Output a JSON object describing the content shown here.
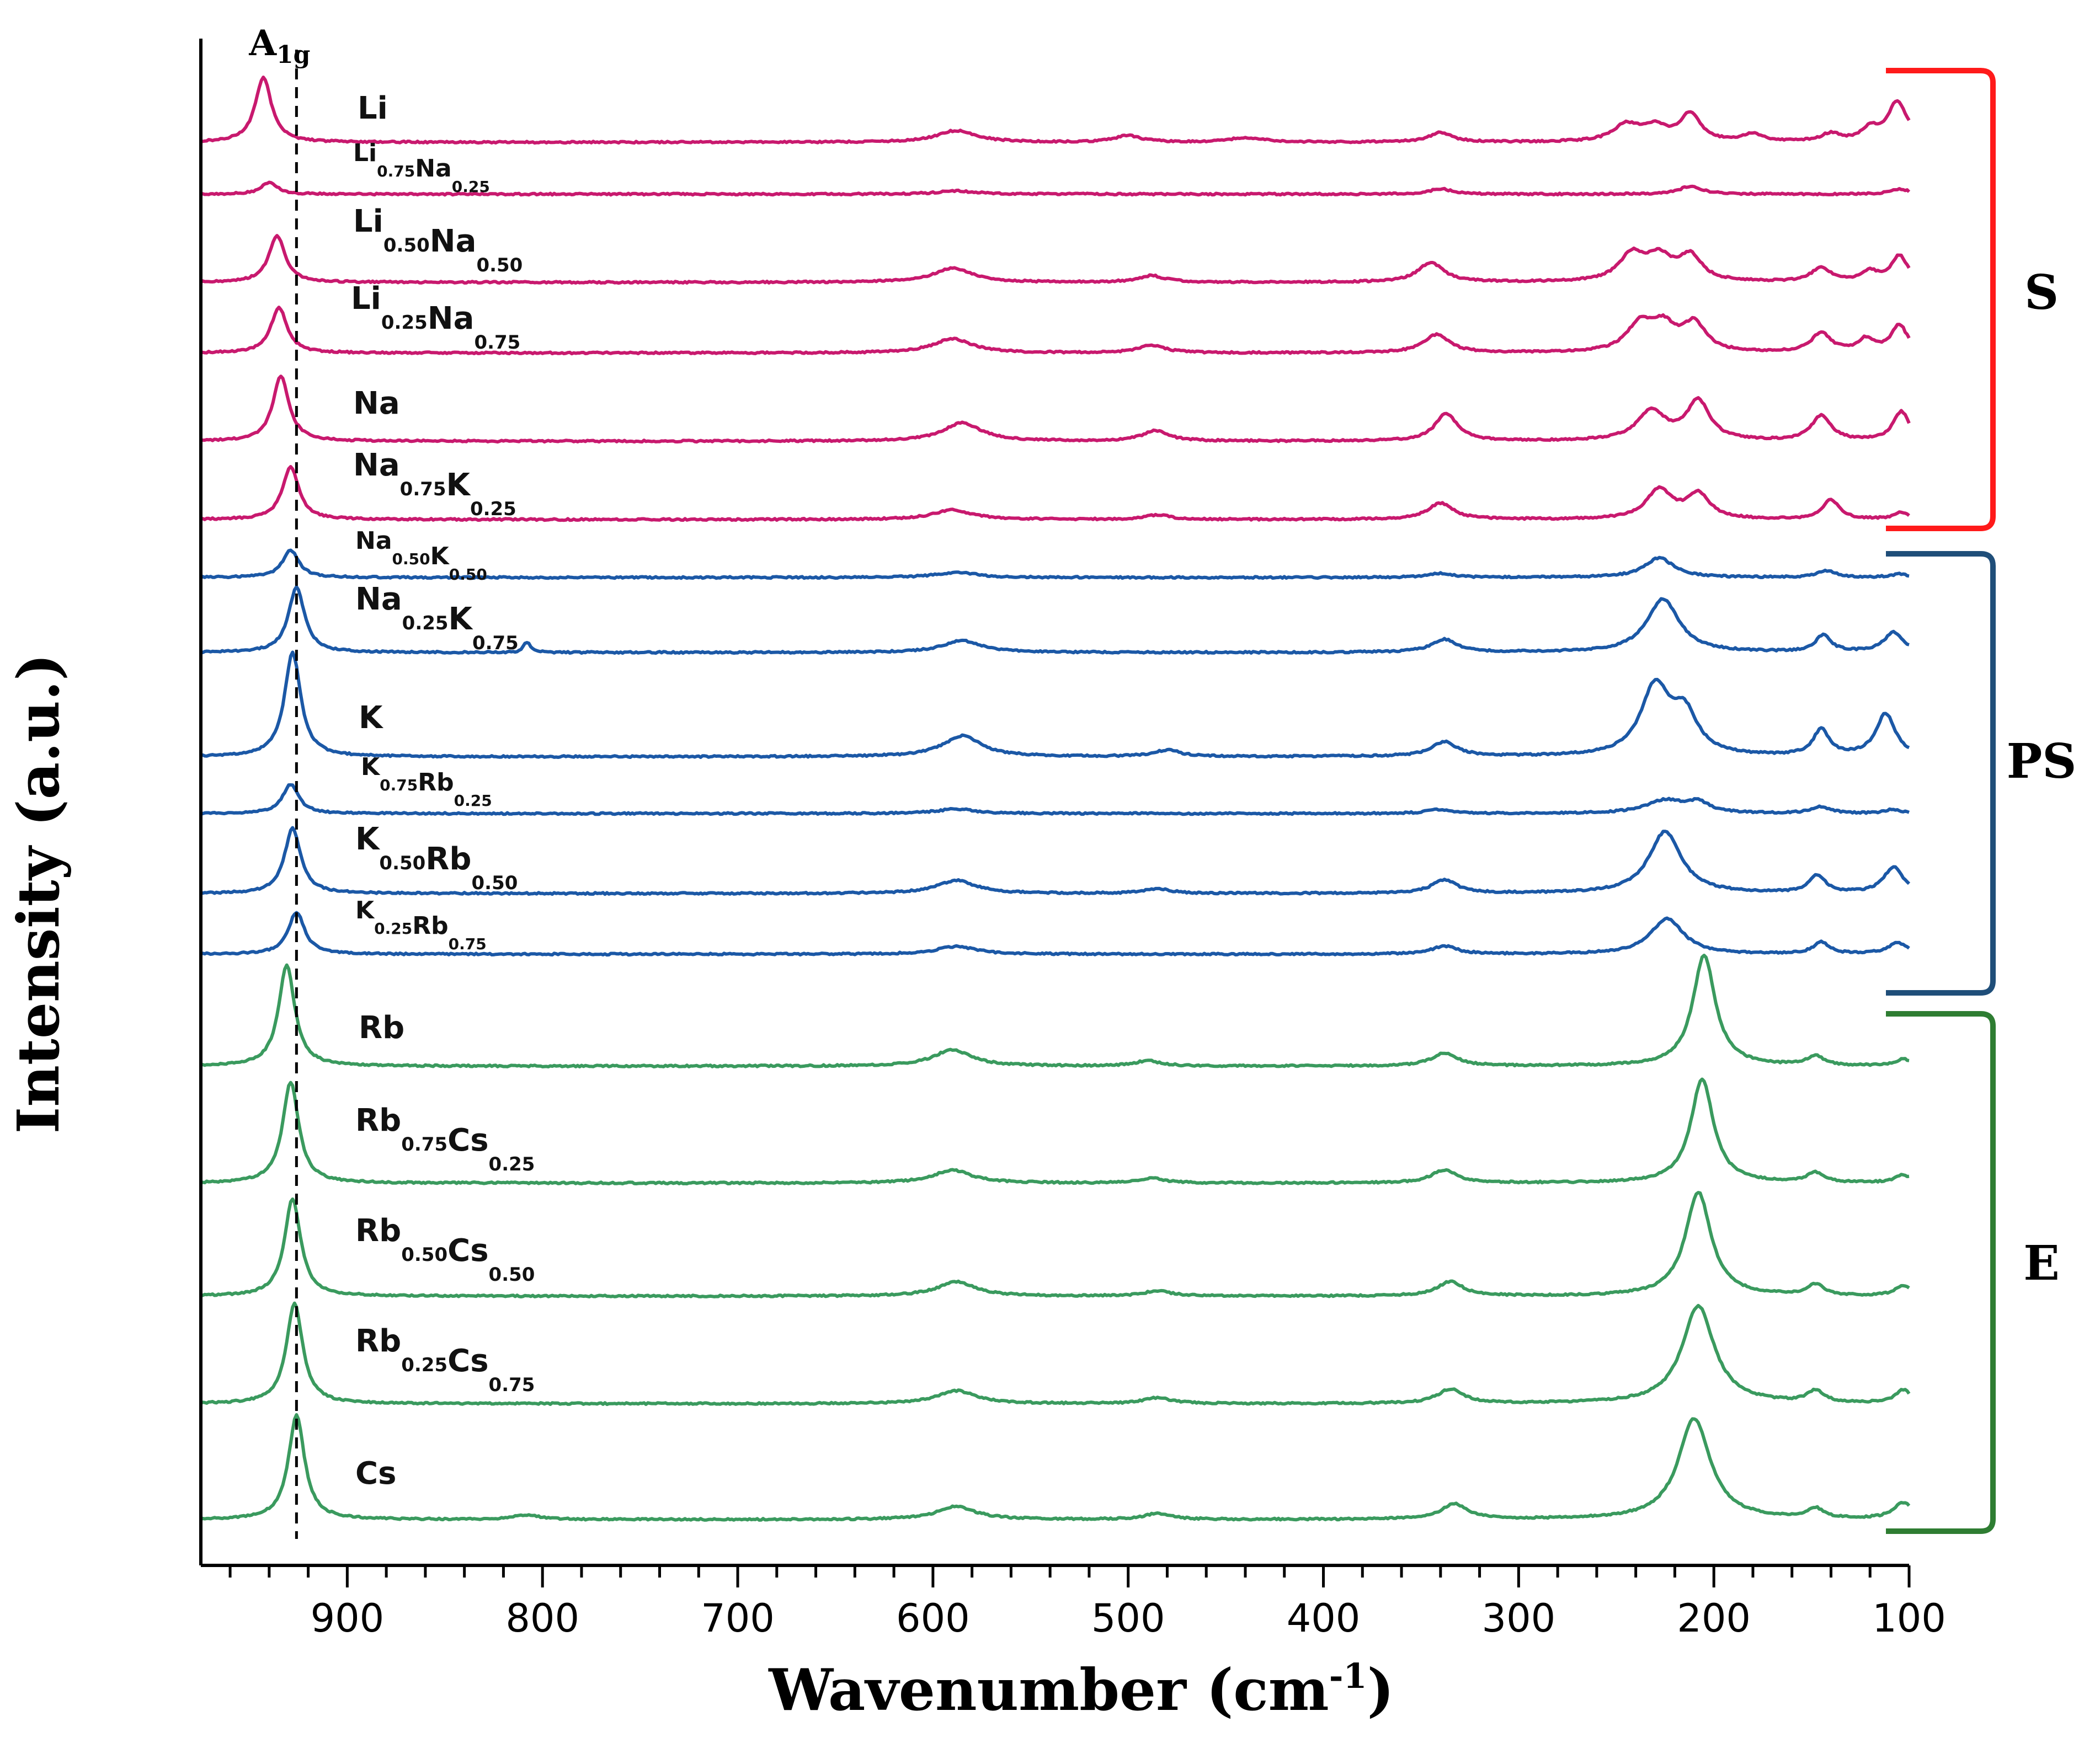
{
  "chart_data": {
    "type": "line",
    "title": "",
    "xlabel": "Wavenumber (cm",
    "xlabel_sup": "-1",
    "xlabel_end": ")",
    "ylabel": "Intensity (a.u.)",
    "xlim": [
      975,
      100
    ],
    "xticks": [
      900,
      800,
      700,
      600,
      500,
      400,
      300,
      200,
      100
    ],
    "grid": false,
    "reference_line": {
      "x": 926,
      "label": "A",
      "label_sub": "1g"
    },
    "groups": [
      {
        "name": "S",
        "color": "#ff1a1a"
      },
      {
        "name": "PS",
        "color": "#1f4e79"
      },
      {
        "name": "E",
        "color": "#2e7d32"
      }
    ],
    "series": [
      {
        "name": "Li",
        "label": [
          [
            "Li",
            ""
          ]
        ],
        "group": "S",
        "color": "#c8196e",
        "peaks": [
          [
            943,
            1.0,
            5
          ],
          [
            588,
            0.18,
            12
          ],
          [
            500,
            0.1,
            8
          ],
          [
            440,
            0.07,
            10
          ],
          [
            340,
            0.15,
            7
          ],
          [
            245,
            0.25,
            8
          ],
          [
            230,
            0.22,
            8
          ],
          [
            212,
            0.42,
            6
          ],
          [
            180,
            0.12,
            6
          ],
          [
            140,
            0.12,
            6
          ],
          [
            120,
            0.18,
            5
          ],
          [
            106,
            0.62,
            6
          ]
        ]
      },
      {
        "name": "Li0.75Na0.25",
        "label": [
          [
            "Li",
            "0.75"
          ],
          [
            "Na",
            "0.25"
          ]
        ],
        "group": "S",
        "color": "#c8196e",
        "peaks": [
          [
            940,
            0.18,
            5
          ],
          [
            588,
            0.05,
            12
          ],
          [
            340,
            0.08,
            7
          ],
          [
            212,
            0.12,
            7
          ],
          [
            105,
            0.08,
            6
          ]
        ]
      },
      {
        "name": "Li0.50Na0.50",
        "label": [
          [
            "Li",
            "0.50"
          ],
          [
            "Na",
            "0.50"
          ]
        ],
        "group": "S",
        "color": "#c8196e",
        "peaks": [
          [
            936,
            0.72,
            5
          ],
          [
            590,
            0.22,
            12
          ],
          [
            488,
            0.1,
            8
          ],
          [
            345,
            0.3,
            8
          ],
          [
            242,
            0.4,
            8
          ],
          [
            228,
            0.35,
            8
          ],
          [
            212,
            0.38,
            7
          ],
          [
            145,
            0.22,
            6
          ],
          [
            120,
            0.15,
            5
          ],
          [
            105,
            0.4,
            5
          ]
        ]
      },
      {
        "name": "Li0.25Na0.75",
        "label": [
          [
            "Li",
            "0.25"
          ],
          [
            "Na",
            "0.75"
          ]
        ],
        "group": "S",
        "color": "#c8196e",
        "peaks": [
          [
            935,
            0.7,
            5
          ],
          [
            590,
            0.22,
            12
          ],
          [
            488,
            0.12,
            8
          ],
          [
            342,
            0.28,
            8
          ],
          [
            238,
            0.4,
            8
          ],
          [
            226,
            0.38,
            8
          ],
          [
            210,
            0.42,
            7
          ],
          [
            145,
            0.3,
            6
          ],
          [
            122,
            0.2,
            5
          ],
          [
            105,
            0.42,
            5
          ]
        ]
      },
      {
        "name": "Na",
        "label": [
          [
            "Na",
            ""
          ]
        ],
        "group": "S",
        "color": "#c8196e",
        "peaks": [
          [
            934,
            1.0,
            5
          ],
          [
            585,
            0.28,
            12
          ],
          [
            486,
            0.16,
            8
          ],
          [
            337,
            0.42,
            7
          ],
          [
            232,
            0.45,
            9
          ],
          [
            208,
            0.6,
            7
          ],
          [
            145,
            0.38,
            6
          ],
          [
            104,
            0.45,
            5
          ]
        ]
      },
      {
        "name": "Na0.75K0.25",
        "label": [
          [
            "Na",
            "0.75"
          ],
          [
            "K",
            "0.25"
          ]
        ],
        "group": "S",
        "color": "#c8196e",
        "peaks": [
          [
            929,
            0.82,
            5
          ],
          [
            590,
            0.15,
            12
          ],
          [
            485,
            0.07,
            8
          ],
          [
            340,
            0.25,
            8
          ],
          [
            228,
            0.45,
            8
          ],
          [
            208,
            0.38,
            7
          ],
          [
            140,
            0.3,
            5
          ],
          [
            104,
            0.1,
            5
          ]
        ]
      },
      {
        "name": "Na0.50K0.50",
        "label": [
          [
            "Na",
            "0.50"
          ],
          [
            "K",
            "0.50"
          ]
        ],
        "group": "PS",
        "color": "#1b58a6",
        "peaks": [
          [
            929,
            0.42,
            5
          ],
          [
            588,
            0.08,
            12
          ],
          [
            340,
            0.06,
            8
          ],
          [
            228,
            0.3,
            9
          ],
          [
            142,
            0.1,
            6
          ],
          [
            105,
            0.05,
            5
          ]
        ]
      },
      {
        "name": "Na0.25K0.75",
        "label": [
          [
            "Na",
            "0.25"
          ],
          [
            "K",
            "0.75"
          ]
        ],
        "group": "PS",
        "color": "#1b58a6",
        "peaks": [
          [
            926,
            1.0,
            5
          ],
          [
            808,
            0.16,
            2
          ],
          [
            585,
            0.18,
            12
          ],
          [
            338,
            0.2,
            8
          ],
          [
            226,
            0.82,
            10
          ],
          [
            144,
            0.25,
            5
          ],
          [
            108,
            0.3,
            6
          ]
        ]
      },
      {
        "name": "K",
        "label": [
          [
            "K",
            ""
          ]
        ],
        "group": "PS",
        "color": "#1b58a6",
        "peaks": [
          [
            928,
            1.6,
            5
          ],
          [
            585,
            0.32,
            12
          ],
          [
            480,
            0.1,
            8
          ],
          [
            338,
            0.22,
            8
          ],
          [
            230,
            1.05,
            9
          ],
          [
            215,
            0.6,
            8
          ],
          [
            145,
            0.4,
            5
          ],
          [
            112,
            0.65,
            6
          ]
        ]
      },
      {
        "name": "K0.75Rb0.25",
        "label": [
          [
            "K",
            "0.75"
          ],
          [
            "Rb",
            "0.25"
          ]
        ],
        "group": "PS",
        "color": "#1b58a6",
        "peaks": [
          [
            929,
            0.45,
            5
          ],
          [
            588,
            0.07,
            12
          ],
          [
            340,
            0.06,
            8
          ],
          [
            225,
            0.2,
            12
          ],
          [
            208,
            0.15,
            7
          ],
          [
            145,
            0.1,
            6
          ],
          [
            108,
            0.06,
            5
          ]
        ]
      },
      {
        "name": "K0.50Rb0.50",
        "label": [
          [
            "K",
            "0.50"
          ],
          [
            "Rb",
            "0.50"
          ]
        ],
        "group": "PS",
        "color": "#1b58a6",
        "peaks": [
          [
            928,
            1.0,
            5
          ],
          [
            588,
            0.2,
            12
          ],
          [
            485,
            0.07,
            8
          ],
          [
            338,
            0.2,
            8
          ],
          [
            225,
            0.95,
            10
          ],
          [
            147,
            0.27,
            5
          ],
          [
            108,
            0.4,
            6
          ]
        ]
      },
      {
        "name": "K0.25Rb0.75",
        "label": [
          [
            "K",
            "0.25"
          ],
          [
            "Rb",
            "0.75"
          ]
        ],
        "group": "PS",
        "color": "#1b58a6",
        "peaks": [
          [
            926,
            0.65,
            5
          ],
          [
            588,
            0.12,
            12
          ],
          [
            338,
            0.12,
            8
          ],
          [
            224,
            0.55,
            10
          ],
          [
            145,
            0.18,
            5
          ],
          [
            106,
            0.17,
            6
          ]
        ]
      },
      {
        "name": "Rb",
        "label": [
          [
            "Rb",
            ""
          ]
        ],
        "group": "E",
        "color": "#3a9a5e",
        "peaks": [
          [
            931,
            1.55,
            5
          ],
          [
            590,
            0.25,
            12
          ],
          [
            490,
            0.08,
            8
          ],
          [
            338,
            0.2,
            8
          ],
          [
            205,
            1.7,
            7
          ],
          [
            148,
            0.15,
            5
          ],
          [
            103,
            0.1,
            5
          ]
        ]
      },
      {
        "name": "Rb0.75Cs0.25",
        "label": [
          [
            "Rb",
            "0.75"
          ],
          [
            "Cs",
            "0.25"
          ]
        ],
        "group": "E",
        "color": "#3a9a5e",
        "peaks": [
          [
            929,
            1.55,
            5
          ],
          [
            590,
            0.2,
            12
          ],
          [
            488,
            0.07,
            8
          ],
          [
            338,
            0.2,
            8
          ],
          [
            206,
            1.6,
            7
          ],
          [
            148,
            0.15,
            5
          ],
          [
            103,
            0.12,
            5
          ]
        ]
      },
      {
        "name": "Rb0.50Cs0.50",
        "label": [
          [
            "Rb",
            "0.50"
          ],
          [
            "Cs",
            "0.50"
          ]
        ],
        "group": "E",
        "color": "#3a9a5e",
        "peaks": [
          [
            928,
            1.5,
            5
          ],
          [
            588,
            0.22,
            12
          ],
          [
            485,
            0.08,
            8
          ],
          [
            335,
            0.22,
            8
          ],
          [
            208,
            1.6,
            8
          ],
          [
            148,
            0.17,
            5
          ],
          [
            103,
            0.15,
            5
          ]
        ]
      },
      {
        "name": "Rb0.25Cs0.75",
        "label": [
          [
            "Rb",
            "0.25"
          ],
          [
            "Cs",
            "0.75"
          ]
        ],
        "group": "E",
        "color": "#3a9a5e",
        "peaks": [
          [
            927,
            1.55,
            5
          ],
          [
            588,
            0.2,
            12
          ],
          [
            485,
            0.09,
            8
          ],
          [
            335,
            0.22,
            8
          ],
          [
            208,
            1.5,
            10
          ],
          [
            148,
            0.18,
            5
          ],
          [
            103,
            0.2,
            5
          ]
        ]
      },
      {
        "name": "Cs",
        "label": [
          [
            "Cs",
            ""
          ]
        ],
        "group": "E",
        "color": "#3a9a5e",
        "peaks": [
          [
            926,
            1.6,
            5
          ],
          [
            808,
            0.07,
            8
          ],
          [
            588,
            0.2,
            12
          ],
          [
            485,
            0.09,
            8
          ],
          [
            333,
            0.24,
            8
          ],
          [
            210,
            1.55,
            10
          ],
          [
            148,
            0.15,
            5
          ],
          [
            103,
            0.25,
            6
          ]
        ]
      }
    ]
  }
}
